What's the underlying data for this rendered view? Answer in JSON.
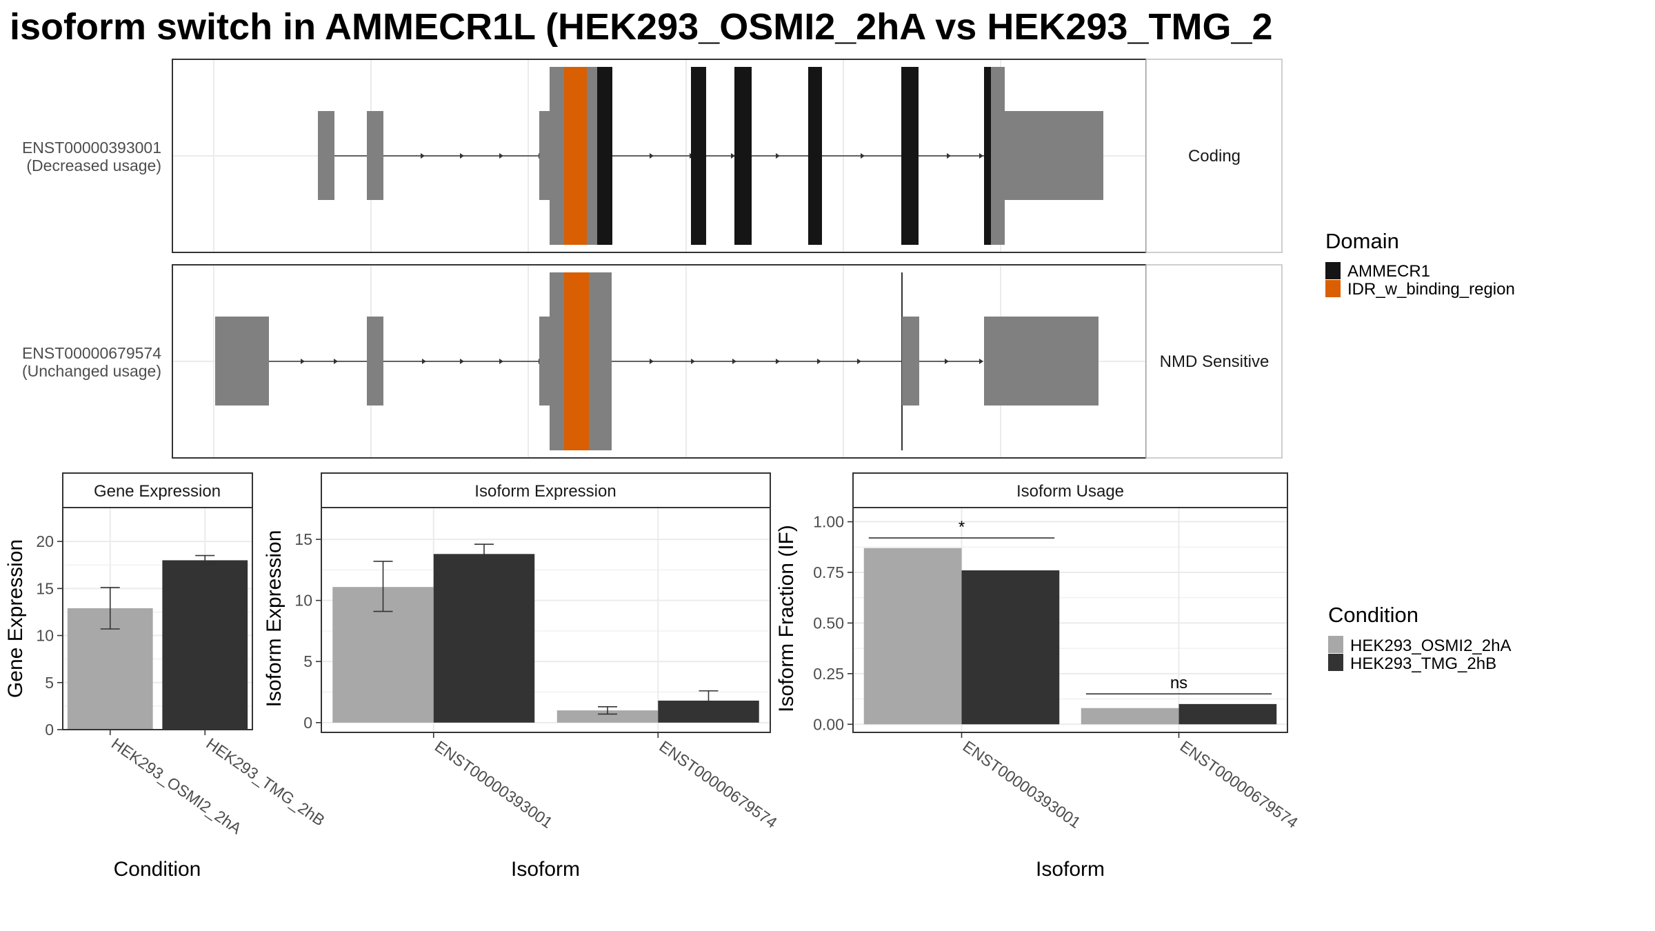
{
  "title": "isoform switch in AMMECR1L (HEK293_OSMI2_2hA vs HEK293_TMG_2",
  "transcripts": [
    {
      "id": "ENST00000393001",
      "usage": "(Decreased usage)",
      "category": "Coding"
    },
    {
      "id": "ENST00000679574",
      "usage": "(Unchanged usage)",
      "category": "NMD Sensitive"
    }
  ],
  "domain_legend": {
    "title": "Domain",
    "items": [
      {
        "label": "AMMECR1",
        "color": "#151515"
      },
      {
        "label": "IDR_w_binding_region",
        "color": "#D95F02"
      }
    ]
  },
  "condition_legend": {
    "title": "Condition",
    "items": [
      {
        "label": "HEK293_OSMI2_2hA",
        "color": "#A8A8A8"
      },
      {
        "label": "HEK293_TMG_2hB",
        "color": "#333333"
      }
    ]
  },
  "colors": {
    "exon": "#808080",
    "cds": "#151515",
    "idr": "#D95F02",
    "cond_a": "#A8A8A8",
    "cond_b": "#333333"
  },
  "chart_data": [
    {
      "type": "bar",
      "title": "Gene Expression",
      "xlabel": "Condition",
      "ylabel": "Gene Expression",
      "ylim": [
        0,
        23.6
      ],
      "yticks": [
        0,
        5,
        10,
        15,
        20
      ],
      "categories": [
        "HEK293_OSMI2_2hA",
        "HEK293_TMG_2hB"
      ],
      "values": [
        12.9,
        18.0
      ],
      "errors": [
        [
          10.7,
          15.1
        ],
        [
          17.6,
          18.5
        ]
      ]
    },
    {
      "type": "bar",
      "title": "Isoform Expression",
      "xlabel": "Isoform",
      "ylabel": "Isoform Expression",
      "ylim": [
        -0.8,
        17.6
      ],
      "yticks": [
        0,
        5,
        10,
        15
      ],
      "categories": [
        "ENST00000393001",
        "ENST00000679574"
      ],
      "series": [
        {
          "name": "HEK293_OSMI2_2hA",
          "values": [
            11.1,
            1.0
          ],
          "errors": [
            [
              9.1,
              13.2
            ],
            [
              0.7,
              1.3
            ]
          ]
        },
        {
          "name": "HEK293_TMG_2hB",
          "values": [
            13.8,
            1.8
          ],
          "errors": [
            [
              12.9,
              14.6
            ],
            [
              1.1,
              2.6
            ]
          ]
        }
      ]
    },
    {
      "type": "bar",
      "title": "Isoform Usage",
      "xlabel": "Isoform",
      "ylabel": "Isoform Fraction (IF)",
      "ylim": [
        -0.04,
        1.07
      ],
      "yticks": [
        0,
        0.25,
        0.5,
        0.75,
        1.0
      ],
      "ytick_labels": [
        "0.00",
        "0.25",
        "0.50",
        "0.75",
        "1.00"
      ],
      "categories": [
        "ENST00000393001",
        "ENST00000679574"
      ],
      "series": [
        {
          "name": "HEK293_OSMI2_2hA",
          "values": [
            0.87,
            0.08
          ]
        },
        {
          "name": "HEK293_TMG_2hB",
          "values": [
            0.76,
            0.1
          ]
        }
      ],
      "significance": [
        "*",
        "ns"
      ]
    }
  ]
}
